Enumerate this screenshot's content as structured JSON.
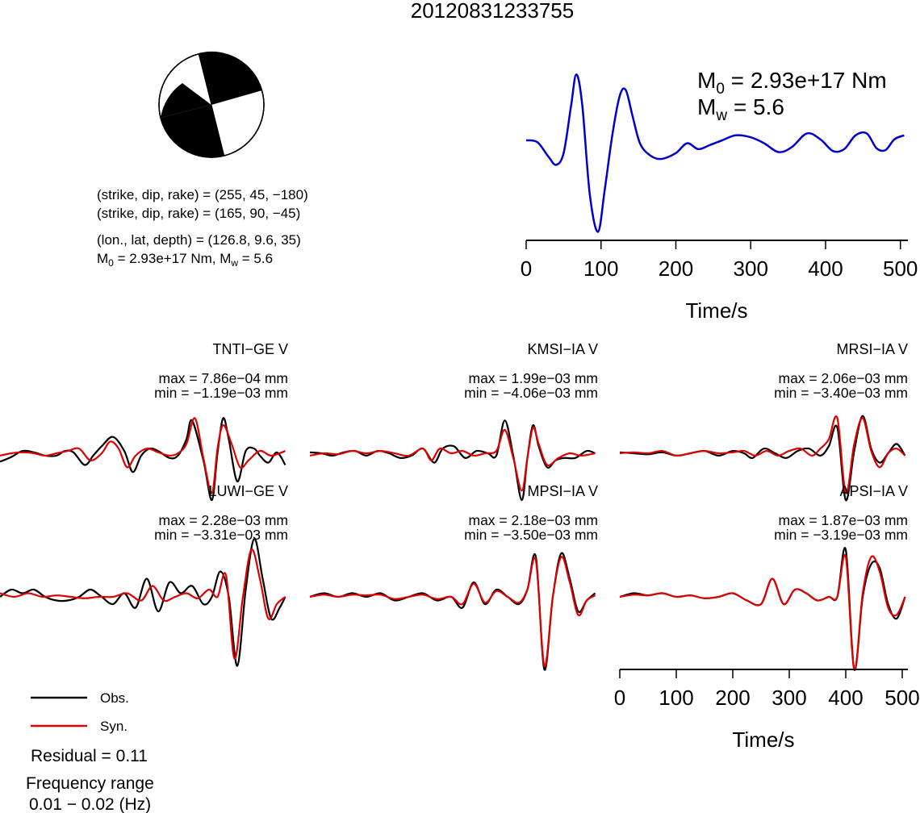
{
  "event_id": "20120831233755",
  "mechanism": {
    "plane1": "(strike, dip, rake) = (255, 45, −180)",
    "plane2": "(strike, dip, rake) = (165, 90, −45)",
    "location": "(lon., lat, depth) = (126.8, 9.6, 35)",
    "moment_line": {
      "m0_prefix": "M",
      "m0_sub": "0",
      "m0_value": " = 2.93e+17 Nm, M",
      "mw_sub": "w",
      "mw_value": " = 5.6"
    }
  },
  "stf_panel": {
    "m0": {
      "prefix": "M",
      "sub": "0",
      "value": " = 2.93e+17 Nm"
    },
    "mw": {
      "prefix": "M",
      "sub": "w",
      "value": " = 5.6"
    },
    "xlabel": "Time/s"
  },
  "time_axis": {
    "ticks": [
      "0",
      "100",
      "200",
      "300",
      "400",
      "500"
    ],
    "xlabel": "Time/s"
  },
  "legend": {
    "obs": "Obs.",
    "syn": "Syn."
  },
  "residual": "Residual = 0.11",
  "frequency": {
    "label": "Frequency range",
    "value": "0.01 − 0.02 (Hz)"
  },
  "colors": {
    "obs": "#000000",
    "syn": "#e00000",
    "stf": "#0000cc"
  },
  "chart_data": [
    {
      "type": "line",
      "name": "source_time_function",
      "x_units": "s",
      "xlim": [
        0,
        510
      ],
      "x_ticks": [
        0,
        100,
        200,
        300,
        400,
        500
      ],
      "xlabel": "Time/s",
      "series": [
        {
          "color": "#0000cc",
          "x": [
            0,
            15,
            30,
            40,
            50,
            60,
            67,
            75,
            85,
            96,
            105,
            115,
            125,
            133,
            142,
            152,
            165,
            180,
            200,
            215,
            230,
            245,
            262,
            280,
            300,
            318,
            337,
            355,
            375,
            393,
            410,
            425,
            440,
            455,
            468,
            480,
            492,
            505
          ],
          "y": [
            0.05,
            0.03,
            -0.12,
            -0.2,
            -0.08,
            0.4,
            0.72,
            0.4,
            -0.5,
            -0.88,
            -0.45,
            0.1,
            0.5,
            0.56,
            0.3,
            0.02,
            -0.1,
            -0.14,
            -0.08,
            0.02,
            -0.04,
            0.0,
            0.05,
            0.1,
            0.08,
            0.02,
            -0.07,
            -0.02,
            0.12,
            0.06,
            -0.06,
            -0.04,
            0.1,
            0.12,
            -0.03,
            -0.05,
            0.06,
            0.1
          ]
        }
      ]
    },
    {
      "type": "line",
      "station": "TNTI−GE V",
      "max": "max = 7.86e−04 mm",
      "min": "min = −1.19e−03 mm",
      "x_units": "s",
      "xlim": [
        0,
        510
      ],
      "series": [
        {
          "name": "Obs.",
          "color": "#000000",
          "x": [
            0,
            20,
            40,
            60,
            80,
            100,
            115,
            130,
            150,
            165,
            180,
            200,
            220,
            235,
            250,
            265,
            280,
            300,
            315,
            330,
            340,
            360,
            375,
            385,
            395,
            405,
            420,
            435,
            450,
            460,
            475,
            490,
            505
          ],
          "y": [
            -0.18,
            -0.08,
            0.05,
            0.02,
            -0.05,
            -0.05,
            0.05,
            0.02,
            -0.25,
            -0.05,
            0.15,
            0.35,
            0.05,
            -0.4,
            -0.05,
            0.1,
            0.05,
            -0.1,
            -0.05,
            0.3,
            0.7,
            -0.15,
            -1.0,
            0.0,
            0.75,
            0.3,
            -0.6,
            0.05,
            0.1,
            -0.05,
            -0.2,
            0.02,
            -0.25
          ]
        },
        {
          "name": "Syn.",
          "color": "#e00000",
          "x": [
            0,
            20,
            40,
            60,
            80,
            100,
            120,
            140,
            160,
            180,
            195,
            210,
            225,
            240,
            260,
            280,
            300,
            315,
            330,
            345,
            360,
            375,
            385,
            395,
            410,
            425,
            440,
            460,
            480,
            505
          ],
          "y": [
            -0.05,
            0.0,
            0.02,
            0.0,
            -0.05,
            0.0,
            0.05,
            0.1,
            -0.15,
            0.0,
            0.25,
            0.1,
            -0.3,
            -0.05,
            0.1,
            0.02,
            -0.05,
            0.0,
            0.2,
            0.75,
            -0.1,
            -0.85,
            0.1,
            0.6,
            0.2,
            -0.3,
            -0.15,
            0.05,
            -0.05,
            0.05
          ]
        }
      ]
    },
    {
      "type": "line",
      "station": "KMSI−IA V",
      "max": "max = 1.99e−03 mm",
      "min": "min = −4.06e−03 mm",
      "x_units": "s",
      "xlim": [
        0,
        510
      ],
      "series": [
        {
          "name": "Obs.",
          "color": "#000000",
          "x": [
            0,
            20,
            40,
            60,
            80,
            100,
            120,
            140,
            160,
            180,
            200,
            220,
            235,
            255,
            275,
            295,
            315,
            330,
            345,
            360,
            375,
            385,
            395,
            405,
            420,
            435,
            450,
            470,
            490,
            505
          ],
          "y": [
            0.02,
            0.0,
            -0.05,
            0.02,
            0.05,
            -0.05,
            0.05,
            0.0,
            -0.1,
            -0.05,
            0.1,
            -0.2,
            0.1,
            0.15,
            -0.1,
            0.05,
            0.0,
            -0.05,
            0.7,
            -0.05,
            -1.0,
            -0.1,
            0.6,
            0.15,
            -0.3,
            -0.15,
            -0.1,
            -0.1,
            0.05,
            0.0
          ]
        },
        {
          "name": "Syn.",
          "color": "#e00000",
          "x": [
            0,
            25,
            50,
            75,
            100,
            125,
            150,
            175,
            200,
            215,
            230,
            250,
            270,
            290,
            310,
            330,
            345,
            360,
            375,
            385,
            395,
            405,
            420,
            440,
            460,
            480,
            505
          ],
          "y": [
            -0.05,
            0.0,
            -0.02,
            0.05,
            0.0,
            0.05,
            0.0,
            -0.05,
            0.1,
            -0.15,
            0.1,
            0.0,
            0.05,
            -0.05,
            0.0,
            0.05,
            0.5,
            -0.1,
            -0.8,
            -0.1,
            0.55,
            0.2,
            -0.25,
            -0.1,
            0.0,
            -0.05,
            0.0
          ]
        }
      ]
    },
    {
      "type": "line",
      "station": "MRSI−IA V",
      "max": "max = 2.06e−03 mm",
      "min": "min = −3.40e−03 mm",
      "x_units": "s",
      "xlim": [
        0,
        510
      ],
      "series": [
        {
          "name": "Obs.",
          "color": "#000000",
          "x": [
            0,
            25,
            50,
            75,
            100,
            125,
            150,
            175,
            200,
            220,
            235,
            255,
            275,
            295,
            315,
            335,
            355,
            370,
            385,
            400,
            415,
            430,
            445,
            460,
            475,
            490,
            505
          ],
          "y": [
            0.02,
            0.0,
            -0.02,
            0.02,
            -0.05,
            0.0,
            0.05,
            -0.05,
            0.05,
            0.0,
            -0.1,
            0.1,
            0.0,
            -0.1,
            0.05,
            0.1,
            -0.05,
            0.15,
            0.55,
            -1.0,
            0.05,
            0.8,
            0.1,
            -0.2,
            0.0,
            0.2,
            -0.05
          ]
        },
        {
          "name": "Syn.",
          "color": "#e00000",
          "x": [
            0,
            25,
            50,
            75,
            100,
            125,
            150,
            175,
            200,
            220,
            240,
            260,
            280,
            300,
            320,
            340,
            355,
            370,
            385,
            400,
            415,
            430,
            445,
            460,
            475,
            490,
            505
          ],
          "y": [
            0.0,
            0.02,
            0.0,
            0.05,
            -0.05,
            0.0,
            0.05,
            0.0,
            0.02,
            0.05,
            -0.05,
            0.05,
            -0.05,
            0.05,
            0.1,
            -0.05,
            0.1,
            0.3,
            0.75,
            -0.85,
            0.2,
            0.75,
            0.05,
            -0.3,
            0.0,
            0.1,
            -0.05
          ]
        }
      ]
    },
    {
      "type": "line",
      "station": "LUWI−GE V",
      "max": "max = 2.28e−03 mm",
      "min": "min = −3.31e−03 mm",
      "x_units": "s",
      "xlim": [
        0,
        510
      ],
      "series": [
        {
          "name": "Obs.",
          "color": "#000000",
          "x": [
            0,
            20,
            40,
            60,
            80,
            100,
            120,
            140,
            160,
            180,
            200,
            220,
            240,
            260,
            280,
            300,
            320,
            340,
            360,
            375,
            390,
            405,
            420,
            435,
            450,
            465,
            480,
            495,
            505
          ],
          "y": [
            0.0,
            0.1,
            0.05,
            0.1,
            0.0,
            -0.05,
            -0.05,
            0.0,
            0.1,
            0.0,
            -0.1,
            0.05,
            -0.15,
            0.25,
            -0.2,
            0.2,
            0.05,
            0.15,
            -0.1,
            0.0,
            0.35,
            0.0,
            -0.95,
            0.1,
            0.8,
            0.25,
            -0.3,
            -0.15,
            0.0
          ]
        },
        {
          "name": "Syn.",
          "color": "#e00000",
          "x": [
            0,
            25,
            50,
            75,
            100,
            125,
            150,
            175,
            200,
            225,
            250,
            270,
            290,
            310,
            330,
            350,
            370,
            385,
            400,
            415,
            430,
            445,
            460,
            475,
            490,
            505
          ],
          "y": [
            0.05,
            0.0,
            0.05,
            0.0,
            0.02,
            0.0,
            -0.02,
            0.0,
            0.0,
            0.05,
            -0.05,
            0.15,
            -0.05,
            0.0,
            0.05,
            -0.02,
            0.1,
            0.0,
            0.3,
            -0.85,
            0.0,
            0.65,
            0.25,
            -0.3,
            -0.1,
            0.0
          ]
        }
      ]
    },
    {
      "type": "line",
      "station": "MPSI−IA V",
      "max": "max = 2.18e−03 mm",
      "min": "min = −3.50e−03 mm",
      "x_units": "s",
      "xlim": [
        0,
        510
      ],
      "series": [
        {
          "name": "Obs.",
          "color": "#000000",
          "x": [
            0,
            25,
            50,
            75,
            100,
            125,
            150,
            175,
            200,
            225,
            250,
            270,
            290,
            310,
            330,
            350,
            370,
            385,
            400,
            415,
            430,
            445,
            460,
            475,
            490,
            505
          ],
          "y": [
            0.0,
            0.05,
            0.0,
            0.05,
            0.0,
            0.05,
            -0.05,
            0.0,
            0.05,
            -0.05,
            0.0,
            -0.15,
            0.2,
            -0.1,
            0.1,
            0.0,
            -0.1,
            0.1,
            0.55,
            -1.0,
            0.0,
            0.6,
            0.25,
            -0.2,
            -0.05,
            0.05
          ]
        },
        {
          "name": "Syn.",
          "color": "#e00000",
          "x": [
            0,
            25,
            50,
            75,
            100,
            125,
            150,
            175,
            200,
            225,
            250,
            270,
            290,
            310,
            330,
            350,
            370,
            385,
            400,
            415,
            430,
            445,
            460,
            475,
            490,
            505
          ],
          "y": [
            0.0,
            0.03,
            0.0,
            0.03,
            0.02,
            0.03,
            -0.03,
            0.0,
            0.03,
            -0.03,
            0.0,
            -0.1,
            0.18,
            -0.08,
            0.08,
            0.0,
            -0.08,
            0.1,
            0.5,
            -0.95,
            0.0,
            0.55,
            0.2,
            -0.25,
            -0.05,
            0.02
          ]
        }
      ]
    },
    {
      "type": "line",
      "station": "APSI−IA V",
      "max": "max = 1.87e−03 mm",
      "min": "min = −3.19e−03 mm",
      "x_units": "s",
      "xlim": [
        0,
        510
      ],
      "series": [
        {
          "name": "Obs.",
          "color": "#000000",
          "x": [
            0,
            25,
            50,
            75,
            100,
            125,
            150,
            175,
            200,
            225,
            250,
            270,
            290,
            310,
            330,
            350,
            370,
            385,
            400,
            415,
            430,
            445,
            460,
            475,
            490,
            505
          ],
          "y": [
            0.0,
            0.05,
            0.02,
            0.05,
            0.0,
            0.02,
            -0.02,
            0.0,
            0.05,
            -0.05,
            -0.1,
            0.25,
            -0.1,
            0.1,
            0.05,
            -0.05,
            0.0,
            0.0,
            0.65,
            -1.0,
            0.0,
            0.45,
            0.4,
            -0.1,
            -0.3,
            0.0
          ]
        },
        {
          "name": "Syn.",
          "color": "#e00000",
          "x": [
            0,
            25,
            50,
            75,
            100,
            125,
            150,
            175,
            200,
            225,
            250,
            270,
            290,
            310,
            330,
            350,
            370,
            385,
            400,
            415,
            430,
            445,
            460,
            475,
            490,
            505
          ],
          "y": [
            0.0,
            0.03,
            0.02,
            0.05,
            0.0,
            0.02,
            -0.02,
            0.0,
            0.05,
            -0.05,
            -0.1,
            0.25,
            -0.1,
            0.1,
            0.05,
            -0.05,
            0.0,
            0.0,
            0.55,
            -1.0,
            0.05,
            0.55,
            0.35,
            -0.15,
            -0.25,
            0.0
          ]
        }
      ]
    }
  ]
}
